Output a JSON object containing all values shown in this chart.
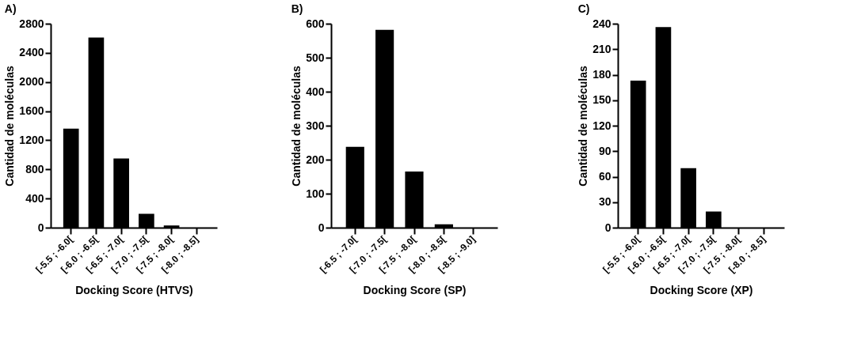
{
  "chart_data": [
    {
      "type": "bar",
      "title": "A)",
      "xlabel": "Docking Score (HTVS)",
      "ylabel": "Cantidad de moléculas",
      "categories": [
        "[-5.5 ; -6.0[",
        "[-6.0 ; -6.5[",
        "[-6.5 ; -7.0[",
        "[-7.0 ; -7.5[",
        "[-7.5 ; -8.0[",
        "[-8.0 ; -8.5]"
      ],
      "values": [
        1360,
        2610,
        950,
        190,
        30,
        0
      ],
      "color": "#000000",
      "ylim": [
        0,
        2800
      ],
      "yticks": [
        0,
        400,
        800,
        1200,
        1600,
        2000,
        2400,
        2800
      ],
      "grid": false
    },
    {
      "type": "bar",
      "title": "B)",
      "xlabel": "Docking Score (SP)",
      "ylabel": "Cantidad de moléculas",
      "categories": [
        "[-6.5 ; -7.0[",
        "[-7.0 ; -7.5[",
        "[-7.5 ; -8.0[",
        "[-8.0 ; -8.5[",
        "[-8.5 ; -9.0]"
      ],
      "values": [
        238,
        582,
        165,
        10,
        0
      ],
      "color": "#000000",
      "ylim": [
        0,
        600
      ],
      "yticks": [
        0,
        100,
        200,
        300,
        400,
        500,
        600
      ],
      "grid": false
    },
    {
      "type": "bar",
      "title": "C)",
      "xlabel": "Docking Score (XP)",
      "ylabel": "Cantidad de moléculas",
      "categories": [
        "[-5.5 ; -6.0[",
        "[-6.0 ; -6.5[",
        "[-6.5 ; -7.0[",
        "[-7.0 ; -7.5[",
        "[-7.5 ; -8.0[",
        "[-8.0 ; -8.5]"
      ],
      "values": [
        173,
        236,
        70,
        19,
        0,
        0
      ],
      "color": "#000000",
      "ylim": [
        0,
        240
      ],
      "yticks": [
        0,
        30,
        60,
        90,
        120,
        150,
        180,
        210,
        240
      ],
      "grid": false
    }
  ]
}
